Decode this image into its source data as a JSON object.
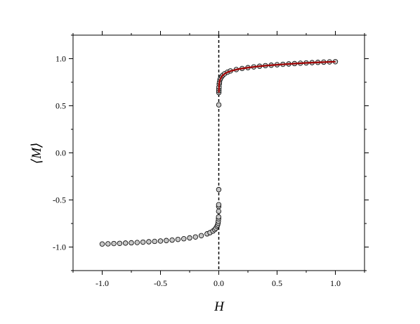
{
  "chart_data": {
    "type": "scatter",
    "xlabel": "H",
    "ylabel": "⟨M⟩",
    "xlim": [
      -1.25,
      1.25
    ],
    "ylim": [
      -1.25,
      1.25
    ],
    "x_ticks": [
      "-1.0",
      "-0.5",
      "0.0",
      "0.5",
      "1.0"
    ],
    "x_tick_values": [
      -1.0,
      -0.5,
      0.0,
      0.5,
      1.0
    ],
    "y_ticks": [
      "-1.0",
      "-0.5",
      "0.0",
      "0.5",
      "1.0"
    ],
    "y_tick_values": [
      -1.0,
      -0.5,
      0.0,
      0.5,
      1.0
    ],
    "grid": false,
    "marker_fill": "#c8c8c8",
    "marker_edge": "#000000",
    "fit_color": "#a00000",
    "reference_line": {
      "x": 0.0,
      "style": "dashed"
    },
    "series": [
      {
        "marker": "circle",
        "points": [
          [
            -1.0,
            -0.968
          ],
          [
            -0.95,
            -0.966
          ],
          [
            -0.9,
            -0.963
          ],
          [
            -0.85,
            -0.961
          ],
          [
            -0.8,
            -0.958
          ],
          [
            -0.75,
            -0.955
          ],
          [
            -0.7,
            -0.952
          ],
          [
            -0.65,
            -0.948
          ],
          [
            -0.6,
            -0.944
          ],
          [
            -0.55,
            -0.94
          ],
          [
            -0.5,
            -0.936
          ],
          [
            -0.45,
            -0.931
          ],
          [
            -0.4,
            -0.926
          ],
          [
            -0.35,
            -0.919
          ],
          [
            -0.3,
            -0.912
          ],
          [
            -0.25,
            -0.903
          ],
          [
            -0.2,
            -0.893
          ],
          [
            -0.15,
            -0.879
          ],
          [
            -0.1,
            -0.86
          ],
          [
            -0.075,
            -0.847
          ],
          [
            -0.05,
            -0.83
          ],
          [
            -0.035,
            -0.815
          ],
          [
            -0.025,
            -0.8
          ],
          [
            -0.015,
            -0.78
          ],
          [
            -0.01,
            -0.765
          ],
          [
            -0.006,
            -0.745
          ],
          [
            -0.004,
            -0.725
          ],
          [
            -0.002,
            -0.7
          ],
          [
            -0.0015,
            -0.68
          ],
          [
            -0.001,
            -0.62
          ],
          [
            -0.0008,
            -0.57
          ],
          [
            -0.0005,
            -0.55
          ],
          [
            -0.0003,
            -0.39
          ],
          [
            0.0003,
            0.51
          ],
          [
            0.0005,
            0.64
          ],
          [
            0.0008,
            0.66
          ],
          [
            0.001,
            0.68
          ],
          [
            0.002,
            0.7
          ],
          [
            0.004,
            0.73
          ],
          [
            0.006,
            0.75
          ],
          [
            0.01,
            0.775
          ],
          [
            0.015,
            0.79
          ],
          [
            0.025,
            0.81
          ],
          [
            0.035,
            0.825
          ],
          [
            0.05,
            0.84
          ],
          [
            0.075,
            0.857
          ],
          [
            0.1,
            0.87
          ],
          [
            0.15,
            0.885
          ],
          [
            0.2,
            0.896
          ],
          [
            0.25,
            0.905
          ],
          [
            0.3,
            0.913
          ],
          [
            0.35,
            0.92
          ],
          [
            0.4,
            0.926
          ],
          [
            0.45,
            0.931
          ],
          [
            0.5,
            0.936
          ],
          [
            0.55,
            0.94
          ],
          [
            0.6,
            0.944
          ],
          [
            0.65,
            0.948
          ],
          [
            0.7,
            0.952
          ],
          [
            0.75,
            0.955
          ],
          [
            0.8,
            0.958
          ],
          [
            0.85,
            0.961
          ],
          [
            0.9,
            0.964
          ],
          [
            0.95,
            0.966
          ],
          [
            1.0,
            0.968
          ]
        ]
      },
      {
        "marker": "line",
        "points": [
          [
            0.001,
            0.64
          ],
          [
            0.003,
            0.73
          ],
          [
            0.006,
            0.757
          ],
          [
            0.01,
            0.775
          ],
          [
            0.02,
            0.8
          ],
          [
            0.03,
            0.818
          ],
          [
            0.05,
            0.84
          ],
          [
            0.08,
            0.86
          ],
          [
            0.12,
            0.875
          ],
          [
            0.17,
            0.89
          ],
          [
            0.25,
            0.905
          ],
          [
            0.35,
            0.92
          ],
          [
            0.45,
            0.931
          ],
          [
            0.55,
            0.94
          ],
          [
            0.65,
            0.948
          ],
          [
            0.75,
            0.955
          ],
          [
            0.85,
            0.961
          ],
          [
            0.95,
            0.966
          ],
          [
            1.0,
            0.968
          ]
        ]
      }
    ]
  }
}
